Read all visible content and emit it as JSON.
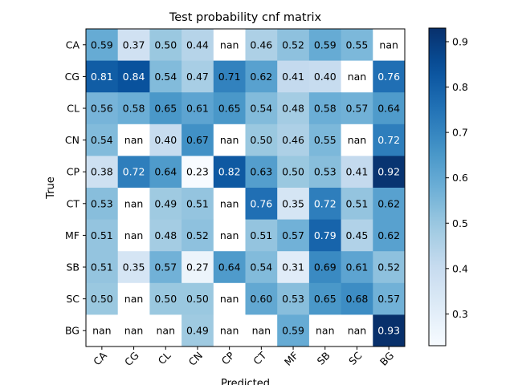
{
  "chart_data": {
    "type": "heatmap",
    "title": "Test probability cnf matrix",
    "xlabel": "Predicted",
    "ylabel": "True",
    "x_categories": [
      "CA",
      "CG",
      "CL",
      "CN",
      "CP",
      "CT",
      "MF",
      "SB",
      "SC",
      "BG"
    ],
    "y_categories": [
      "CA",
      "CG",
      "CL",
      "CN",
      "CP",
      "CT",
      "MF",
      "SB",
      "SC",
      "BG"
    ],
    "values": [
      [
        0.59,
        0.37,
        0.5,
        0.44,
        null,
        0.46,
        0.52,
        0.59,
        0.55,
        null
      ],
      [
        0.81,
        0.84,
        0.54,
        0.47,
        0.71,
        0.62,
        0.41,
        0.4,
        null,
        0.76
      ],
      [
        0.56,
        0.58,
        0.65,
        0.61,
        0.65,
        0.54,
        0.48,
        0.58,
        0.57,
        0.64
      ],
      [
        0.54,
        null,
        0.4,
        0.67,
        null,
        0.5,
        0.46,
        0.55,
        null,
        0.72
      ],
      [
        0.38,
        0.72,
        0.64,
        0.23,
        0.82,
        0.63,
        0.5,
        0.53,
        0.41,
        0.92
      ],
      [
        0.53,
        null,
        0.49,
        0.51,
        null,
        0.76,
        0.35,
        0.72,
        0.51,
        0.62
      ],
      [
        0.51,
        null,
        0.48,
        0.52,
        null,
        0.51,
        0.57,
        0.79,
        0.45,
        0.62
      ],
      [
        0.51,
        0.35,
        0.57,
        0.27,
        0.64,
        0.54,
        0.31,
        0.69,
        0.61,
        0.52
      ],
      [
        0.5,
        null,
        0.5,
        0.5,
        null,
        0.6,
        0.53,
        0.65,
        0.68,
        0.57
      ],
      [
        null,
        null,
        null,
        0.49,
        null,
        null,
        0.59,
        null,
        null,
        0.93
      ]
    ],
    "missing_label": "nan",
    "colormap": "Blues",
    "color_range": [
      0.23,
      0.93
    ],
    "colorbar_ticks": [
      0.3,
      0.4,
      0.5,
      0.6,
      0.7,
      0.8,
      0.9
    ],
    "colorbar_tick_labels": [
      "0.3",
      "0.4",
      "0.5",
      "0.6",
      "0.7",
      "0.8",
      "0.9"
    ],
    "grid": false,
    "colorbar_position": "right"
  }
}
